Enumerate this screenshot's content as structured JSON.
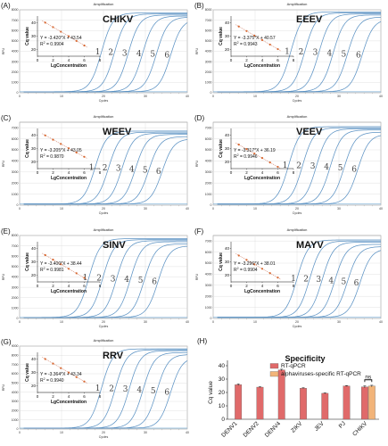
{
  "chart_data": [
    {
      "panel_label": "(A)",
      "type": "line",
      "title": "Amplification",
      "virus": "CHIKV",
      "xlabel": "Cycles",
      "ylabel": "RFU",
      "xlim": [
        0,
        40
      ],
      "ylim": [
        0,
        8000
      ],
      "x_ticks": [
        "0",
        "10",
        "20",
        "30",
        "40"
      ],
      "y_ticks": [
        "0",
        "1000",
        "2000",
        "3000",
        "4000",
        "5000",
        "6000",
        "7000",
        "8000"
      ],
      "curves": [
        {
          "label": "1",
          "midpoint_cycle": 19.5,
          "plateau": 7600
        },
        {
          "label": "2",
          "midpoint_cycle": 22.6,
          "plateau": 7500
        },
        {
          "label": "3",
          "midpoint_cycle": 25.9,
          "plateau": 7400
        },
        {
          "label": "4",
          "midpoint_cycle": 29.3,
          "plateau": 7300
        },
        {
          "label": "5",
          "midpoint_cycle": 32.6,
          "plateau": 7200
        },
        {
          "label": "6",
          "midpoint_cycle": 36.0,
          "plateau": 7000
        }
      ],
      "inset": {
        "type": "scatter",
        "xlabel": "LgConcentration",
        "ylabel": "Cq value",
        "x_ticks": [
          "0",
          "2",
          "4",
          "6",
          "8"
        ],
        "y_ticks": [
          "20",
          "30",
          "40"
        ],
        "xlim": [
          0,
          8
        ],
        "ylim": [
          15,
          45
        ],
        "equation": "Y = -3.420*X + 43.54",
        "r2_label": "R",
        "r2_value": " = 0.9904",
        "slope": -3.42,
        "intercept": 43.54,
        "points": [
          [
            1,
            40.1
          ],
          [
            2,
            36.7
          ],
          [
            3,
            33.3
          ],
          [
            4,
            29.9
          ],
          [
            5,
            26.4
          ],
          [
            6,
            23.0
          ]
        ]
      }
    },
    {
      "panel_label": "(B)",
      "type": "line",
      "title": "Amplification",
      "virus": "EEEV",
      "xlabel": "Cycles",
      "ylabel": "RFU",
      "xlim": [
        0,
        40
      ],
      "ylim": [
        0,
        8000
      ],
      "x_ticks": [
        "0",
        "10",
        "20",
        "30",
        "40"
      ],
      "y_ticks": [
        "0",
        "1000",
        "2000",
        "3000",
        "4000",
        "5000",
        "6000",
        "7000",
        "8000"
      ],
      "curves": [
        {
          "label": "1",
          "midpoint_cycle": 18.5,
          "plateau": 7700
        },
        {
          "label": "2",
          "midpoint_cycle": 21.8,
          "plateau": 7600
        },
        {
          "label": "3",
          "midpoint_cycle": 25.2,
          "plateau": 7500
        },
        {
          "label": "4",
          "midpoint_cycle": 28.6,
          "plateau": 7400
        },
        {
          "label": "5",
          "midpoint_cycle": 32.0,
          "plateau": 7200
        },
        {
          "label": "6",
          "midpoint_cycle": 35.5,
          "plateau": 7000
        }
      ],
      "inset": {
        "type": "scatter",
        "xlabel": "LgConcentration",
        "ylabel": "Cq value",
        "x_ticks": [
          "0",
          "2",
          "4",
          "6",
          "8"
        ],
        "y_ticks": [
          "20",
          "30",
          "40"
        ],
        "xlim": [
          0,
          8
        ],
        "ylim": [
          15,
          45
        ],
        "equation": "Y = -3.375*X + 40.57",
        "r2_label": "R",
        "r2_value": " = 0.9943",
        "slope": -3.375,
        "intercept": 40.57,
        "points": [
          [
            1,
            37.2
          ],
          [
            2,
            33.8
          ],
          [
            3,
            30.4
          ],
          [
            4,
            27.1
          ],
          [
            5,
            23.7
          ],
          [
            6,
            20.3
          ]
        ]
      }
    },
    {
      "panel_label": "(C)",
      "type": "line",
      "title": "Amplification",
      "virus": "WEEV",
      "xlabel": "Cycles",
      "ylabel": "RFU",
      "xlim": [
        0,
        40
      ],
      "ylim": [
        0,
        7500
      ],
      "x_ticks": [
        "0",
        "10",
        "20",
        "30",
        "40"
      ],
      "y_ticks": [
        "0",
        "1000",
        "2000",
        "3000",
        "4000",
        "5000",
        "6000",
        "7000"
      ],
      "curves": [
        {
          "label": "1",
          "midpoint_cycle": 18.0,
          "plateau": 6600
        },
        {
          "label": "2",
          "midpoint_cycle": 21.2,
          "plateau": 6500
        },
        {
          "label": "3",
          "midpoint_cycle": 24.4,
          "plateau": 6400
        },
        {
          "label": "4",
          "midpoint_cycle": 27.6,
          "plateau": 6300
        },
        {
          "label": "5",
          "midpoint_cycle": 30.8,
          "plateau": 6100
        },
        {
          "label": "6",
          "midpoint_cycle": 34.0,
          "plateau": 5900
        }
      ],
      "inset": {
        "type": "scatter",
        "xlabel": "LgConcentration",
        "ylabel": "Cq value",
        "x_ticks": [
          "0",
          "2",
          "4",
          "6",
          "8"
        ],
        "y_ticks": [
          "20",
          "30",
          "40"
        ],
        "xlim": [
          0,
          8
        ],
        "ylim": [
          15,
          45
        ],
        "equation": "Y = -3.205*X + 43.05",
        "r2_label": "R",
        "r2_value": " = 0.9870",
        "slope": -3.205,
        "intercept": 43.05,
        "points": [
          [
            1,
            39.8
          ],
          [
            2,
            36.6
          ],
          [
            3,
            33.4
          ],
          [
            4,
            30.2
          ],
          [
            5,
            27.0
          ],
          [
            6,
            23.8
          ]
        ]
      }
    },
    {
      "panel_label": "(D)",
      "type": "line",
      "title": "Amplification",
      "virus": "VEEV",
      "xlabel": "Cycles",
      "ylabel": "RFU",
      "xlim": [
        0,
        40
      ],
      "ylim": [
        0,
        7500
      ],
      "x_ticks": [
        "0",
        "10",
        "20",
        "30",
        "40"
      ],
      "y_ticks": [
        "0",
        "1000",
        "2000",
        "3000",
        "4000",
        "5000",
        "6000",
        "7000"
      ],
      "curves": [
        {
          "label": "1",
          "midpoint_cycle": 18.0,
          "plateau": 7000
        },
        {
          "label": "2",
          "midpoint_cycle": 21.3,
          "plateau": 6900
        },
        {
          "label": "3",
          "midpoint_cycle": 24.6,
          "plateau": 6800
        },
        {
          "label": "4",
          "midpoint_cycle": 27.9,
          "plateau": 6700
        },
        {
          "label": "5",
          "midpoint_cycle": 31.2,
          "plateau": 6500
        },
        {
          "label": "6",
          "midpoint_cycle": 34.5,
          "plateau": 6300
        }
      ],
      "inset": {
        "type": "scatter",
        "xlabel": "LgConcentration",
        "ylabel": "Cq value",
        "x_ticks": [
          "0",
          "2",
          "4",
          "6",
          "8"
        ],
        "y_ticks": [
          "20",
          "30",
          "40"
        ],
        "xlim": [
          0,
          8
        ],
        "ylim": [
          15,
          45
        ],
        "equation": "Y = -3.317*X + 36.19",
        "r2_label": "R",
        "r2_value": " = 0.9946",
        "slope": -3.317,
        "intercept": 36.19,
        "points": [
          [
            1,
            32.9
          ],
          [
            2,
            29.6
          ],
          [
            3,
            26.2
          ],
          [
            4,
            22.9
          ],
          [
            5,
            19.6
          ],
          [
            6,
            16.3
          ]
        ]
      }
    },
    {
      "panel_label": "(E)",
      "type": "line",
      "title": "Amplification",
      "virus": "SINV",
      "xlabel": "Cycles",
      "ylabel": "RFU",
      "xlim": [
        0,
        40
      ],
      "ylim": [
        0,
        8000
      ],
      "x_ticks": [
        "0",
        "10",
        "20",
        "30",
        "40"
      ],
      "y_ticks": [
        "0",
        "1000",
        "2000",
        "3000",
        "4000",
        "5000",
        "6000",
        "7000",
        "8000"
      ],
      "curves": [
        {
          "label": "1",
          "midpoint_cycle": 16.5,
          "plateau": 7600
        },
        {
          "label": "2",
          "midpoint_cycle": 19.8,
          "plateau": 7500
        },
        {
          "label": "3",
          "midpoint_cycle": 23.1,
          "plateau": 7400
        },
        {
          "label": "4",
          "midpoint_cycle": 26.4,
          "plateau": 7300
        },
        {
          "label": "5",
          "midpoint_cycle": 29.7,
          "plateau": 7100
        },
        {
          "label": "6",
          "midpoint_cycle": 33.0,
          "plateau": 6900
        }
      ],
      "inset": {
        "type": "scatter",
        "xlabel": "LgConcentration",
        "ylabel": "Cq value",
        "x_ticks": [
          "0",
          "2",
          "4",
          "6",
          "8"
        ],
        "y_ticks": [
          "20",
          "30",
          "40"
        ],
        "xlim": [
          0,
          8
        ],
        "ylim": [
          15,
          45
        ],
        "equation": "Y = -3.400*X + 38.44",
        "r2_label": "R",
        "r2_value": " = 0.9981",
        "slope": -3.4,
        "intercept": 38.44,
        "points": [
          [
            1,
            35.0
          ],
          [
            2,
            31.6
          ],
          [
            3,
            28.2
          ],
          [
            4,
            24.8
          ],
          [
            5,
            21.4
          ],
          [
            6,
            18.0
          ]
        ]
      }
    },
    {
      "panel_label": "(F)",
      "type": "line",
      "title": "Amplification",
      "virus": "MAYV",
      "xlabel": "Cycles",
      "ylabel": "RFU",
      "xlim": [
        0,
        40
      ],
      "ylim": [
        0,
        7500
      ],
      "x_ticks": [
        "0",
        "10",
        "20",
        "30",
        "40"
      ],
      "y_ticks": [
        "0",
        "1000",
        "2000",
        "3000",
        "4000",
        "5000",
        "6000",
        "7000"
      ],
      "curves": [
        {
          "label": "1",
          "midpoint_cycle": 20.0,
          "plateau": 7000
        },
        {
          "label": "2",
          "midpoint_cycle": 23.0,
          "plateau": 6900
        },
        {
          "label": "3",
          "midpoint_cycle": 26.0,
          "plateau": 6800
        },
        {
          "label": "4",
          "midpoint_cycle": 29.0,
          "plateau": 6600
        },
        {
          "label": "5",
          "midpoint_cycle": 32.0,
          "plateau": 6400
        },
        {
          "label": "6",
          "midpoint_cycle": 35.0,
          "plateau": 6200
        }
      ],
      "inset": {
        "type": "scatter",
        "xlabel": "LgConcentration",
        "ylabel": "Cq value",
        "x_ticks": [
          "0",
          "2",
          "4",
          "6",
          "8"
        ],
        "y_ticks": [
          "20",
          "30",
          "40"
        ],
        "xlim": [
          0,
          8
        ],
        "ylim": [
          15,
          45
        ],
        "equation": "Y = -3.296*X + 38.01",
        "r2_label": "R",
        "r2_value": " = 0.9904",
        "slope": -3.296,
        "intercept": 38.01,
        "points": [
          [
            1,
            34.7
          ],
          [
            2,
            31.4
          ],
          [
            3,
            28.1
          ],
          [
            4,
            24.8
          ],
          [
            5,
            21.5
          ],
          [
            6,
            18.2
          ]
        ]
      }
    },
    {
      "panel_label": "(G)",
      "type": "line",
      "title": "Amplification",
      "virus": "RRV",
      "xlabel": "Cycles",
      "ylabel": "RFU",
      "xlim": [
        0,
        40
      ],
      "ylim": [
        0,
        9000
      ],
      "x_ticks": [
        "0",
        "10",
        "20",
        "30",
        "40"
      ],
      "y_ticks": [
        "0",
        "1000",
        "2000",
        "3000",
        "4000",
        "5000",
        "6000",
        "7000",
        "8000",
        "9000"
      ],
      "curves": [
        {
          "label": "1",
          "midpoint_cycle": 19.5,
          "plateau": 8600
        },
        {
          "label": "2",
          "midpoint_cycle": 22.8,
          "plateau": 8500
        },
        {
          "label": "3",
          "midpoint_cycle": 26.1,
          "plateau": 8400
        },
        {
          "label": "4",
          "midpoint_cycle": 29.4,
          "plateau": 8200
        },
        {
          "label": "5",
          "midpoint_cycle": 32.7,
          "plateau": 8000
        },
        {
          "label": "6",
          "midpoint_cycle": 36.0,
          "plateau": 7700
        }
      ],
      "inset": {
        "type": "scatter",
        "xlabel": "LgConcentration",
        "ylabel": "Cq value",
        "x_ticks": [
          "0",
          "2",
          "4",
          "6",
          "8"
        ],
        "y_ticks": [
          "20",
          "30",
          "40"
        ],
        "xlim": [
          0,
          8
        ],
        "ylim": [
          15,
          45
        ],
        "equation": "Y = -3.364*X + 43.34",
        "r2_label": "R",
        "r2_value": " = 0.9940",
        "slope": -3.364,
        "intercept": 43.34,
        "points": [
          [
            1,
            40.0
          ],
          [
            2,
            36.6
          ],
          [
            3,
            33.2
          ],
          [
            4,
            29.9
          ],
          [
            5,
            26.5
          ],
          [
            6,
            23.2
          ]
        ]
      }
    },
    {
      "panel_label": "(H)",
      "type": "bar",
      "title": "Specificity",
      "xlabel": "",
      "ylabel": "Cq value",
      "ylim": [
        0,
        40
      ],
      "y_ticks": [
        "0",
        "10",
        "20",
        "30",
        "40"
      ],
      "categories": [
        "DENV1",
        "DENV2",
        "DENV4",
        "ZIKV",
        "JEV",
        "PJ",
        "CHIKV"
      ],
      "series": [
        {
          "name": "RT-qPCR",
          "color": "#e06a6a",
          "values": [
            25.8,
            24.0,
            36.8,
            23.2,
            19.4,
            24.9,
            24.2
          ],
          "errors": [
            0.6,
            0.3,
            0.6,
            0.3,
            0.3,
            0.3,
            0.8
          ]
        },
        {
          "name": "alphaviruses-specific RT-qPCR",
          "color": "#f2b479",
          "values": [
            null,
            null,
            null,
            null,
            null,
            null,
            24.8
          ],
          "errors": [
            null,
            null,
            null,
            null,
            null,
            null,
            0.6
          ]
        }
      ],
      "annotation": "ns"
    }
  ]
}
